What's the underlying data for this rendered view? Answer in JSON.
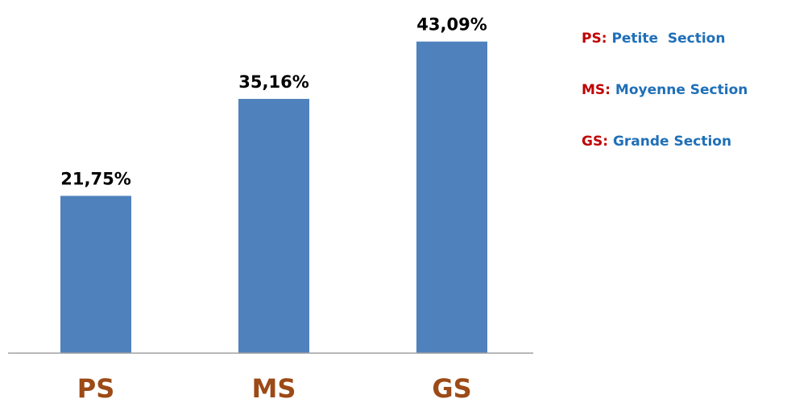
{
  "chart_data": {
    "type": "bar",
    "categories": [
      "PS",
      "MS",
      "GS"
    ],
    "values": [
      21.75,
      35.16,
      43.09
    ],
    "value_labels": [
      "21,75%",
      "35,16%",
      "43,09%"
    ],
    "title": "",
    "xlabel": "",
    "ylabel": "",
    "ylim": [
      0,
      45.5
    ],
    "grid": false,
    "legend": {
      "placement": "right",
      "entries": [
        {
          "abbr": "PS",
          "separator": ":",
          "text": "Petite  Section"
        },
        {
          "abbr": "MS",
          "separator": ":",
          "text": "Moyenne Section"
        },
        {
          "abbr": "GS",
          "separator": ":",
          "text": "Grande Section"
        }
      ]
    }
  },
  "colors": {
    "bar": "#4f81bd",
    "axis": "#a0a0a0",
    "category_label": "#9c4a16",
    "value_label": "#000000",
    "legend_abbr": "#c00000",
    "legend_text": "#1f6fb8"
  }
}
